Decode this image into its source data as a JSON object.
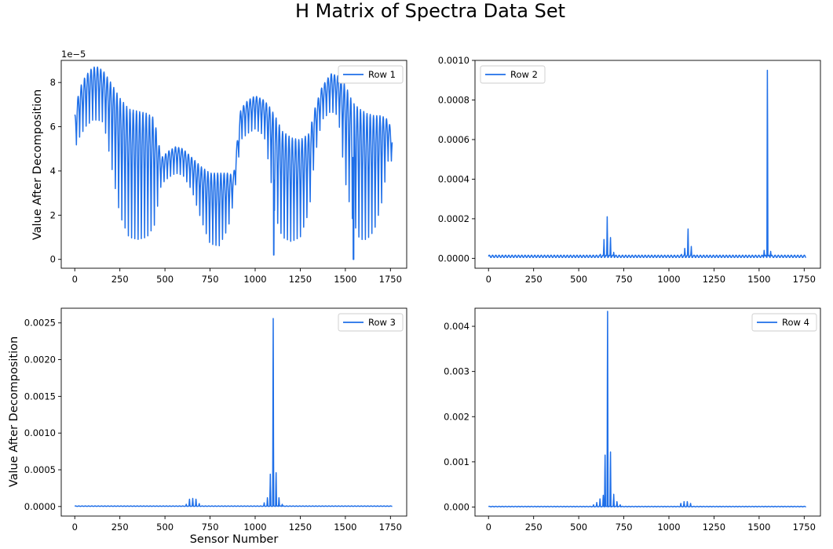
{
  "figure": {
    "title": "H Matrix of Spectra Data Set",
    "line_color": "#1f6fe8"
  },
  "chart_data": [
    {
      "type": "line",
      "series": [
        {
          "name": "Row 1"
        }
      ],
      "legend": "top-right",
      "ylabel": "Value After Decomposition",
      "xlabel": "",
      "y_offset_label": "1e−5",
      "xlim": [
        -75,
        1840
      ],
      "ylim": [
        -0.4,
        9.0
      ],
      "x_ticks": [
        0,
        250,
        500,
        750,
        1000,
        1250,
        1500,
        1750
      ],
      "x_tick_labels": [
        "0",
        "250",
        "500",
        "750",
        "1000",
        "1250",
        "1500",
        "1750"
      ],
      "y_ticks": [
        0,
        2,
        4,
        6,
        8
      ],
      "y_tick_labels": [
        "0",
        "2",
        "4",
        "6",
        "8"
      ],
      "envelope": {
        "x": [
          0,
          25,
          60,
          100,
          130,
          160,
          200,
          250,
          300,
          350,
          400,
          440,
          480,
          520,
          560,
          600,
          650,
          700,
          750,
          800,
          850,
          880,
          920,
          960,
          1000,
          1050,
          1080,
          1110,
          1150,
          1200,
          1250,
          1300,
          1330,
          1370,
          1420,
          1460,
          1500,
          1540,
          1580,
          1620,
          1660,
          1700,
          1740,
          1760
        ],
        "upper": [
          6.5,
          7.7,
          8.3,
          8.7,
          8.7,
          8.5,
          8.0,
          7.3,
          6.8,
          6.7,
          6.6,
          6.4,
          4.6,
          4.9,
          5.1,
          5.0,
          4.6,
          4.2,
          3.9,
          3.9,
          3.9,
          3.8,
          6.8,
          7.2,
          7.4,
          7.2,
          6.9,
          6.5,
          5.8,
          5.5,
          5.4,
          5.7,
          6.8,
          7.8,
          8.4,
          8.3,
          7.9,
          7.1,
          6.8,
          6.6,
          6.5,
          6.5,
          6.3,
          5.6
        ],
        "lower": [
          5.0,
          5.5,
          6.0,
          6.3,
          6.3,
          6.2,
          4.4,
          2.0,
          1.0,
          0.9,
          1.0,
          1.5,
          3.4,
          3.7,
          3.9,
          3.8,
          3.1,
          1.8,
          0.7,
          0.6,
          1.4,
          2.6,
          5.4,
          5.7,
          5.9,
          5.6,
          4.1,
          2.0,
          1.0,
          0.8,
          1.0,
          2.2,
          4.6,
          6.3,
          6.7,
          6.5,
          3.5,
          1.8,
          0.9,
          0.9,
          1.3,
          2.5,
          4.6,
          4.4
        ]
      },
      "oscillation_period": 18,
      "dips": [
        {
          "x": 1103,
          "y": 0.2
        },
        {
          "x": 1545,
          "y": 0.0
        }
      ]
    },
    {
      "type": "line",
      "series": [
        {
          "name": "Row 2"
        }
      ],
      "legend": "top-left",
      "ylabel": "",
      "xlabel": "",
      "xlim": [
        -75,
        1840
      ],
      "ylim": [
        -5e-05,
        0.001
      ],
      "x_ticks": [
        0,
        250,
        500,
        750,
        1000,
        1250,
        1500,
        1750
      ],
      "x_tick_labels": [
        "0",
        "250",
        "500",
        "750",
        "1000",
        "1250",
        "1500",
        "1750"
      ],
      "y_ticks": [
        0,
        0.0002,
        0.0004,
        0.0006,
        0.0008,
        0.001
      ],
      "y_tick_labels": [
        "0.0000",
        "0.0002",
        "0.0004",
        "0.0006",
        "0.0008",
        "0.0010"
      ],
      "baseline": 1e-05,
      "spikes": [
        {
          "x": 620,
          "y": 2e-05
        },
        {
          "x": 640,
          "y": 9.5e-05
        },
        {
          "x": 658,
          "y": 0.00021
        },
        {
          "x": 676,
          "y": 0.000105
        },
        {
          "x": 694,
          "y": 3e-05
        },
        {
          "x": 1070,
          "y": 2e-05
        },
        {
          "x": 1088,
          "y": 5e-05
        },
        {
          "x": 1106,
          "y": 0.000148
        },
        {
          "x": 1124,
          "y": 6e-05
        },
        {
          "x": 1142,
          "y": 1.5e-05
        },
        {
          "x": 1528,
          "y": 4e-05
        },
        {
          "x": 1546,
          "y": 0.00095
        },
        {
          "x": 1564,
          "y": 3.5e-05
        }
      ]
    },
    {
      "type": "line",
      "series": [
        {
          "name": "Row 3"
        }
      ],
      "legend": "top-right",
      "ylabel": "Value After Decomposition",
      "xlabel": "Sensor Number",
      "xlim": [
        -75,
        1840
      ],
      "ylim": [
        -0.00013,
        0.0027
      ],
      "x_ticks": [
        0,
        250,
        500,
        750,
        1000,
        1250,
        1500,
        1750
      ],
      "x_tick_labels": [
        "0",
        "250",
        "500",
        "750",
        "1000",
        "1250",
        "1500",
        "1750"
      ],
      "y_ticks": [
        0,
        0.0005,
        0.001,
        0.0015,
        0.002,
        0.0025
      ],
      "y_tick_labels": [
        "0.0000",
        "0.0005",
        "0.0010",
        "0.0015",
        "0.0020",
        "0.0025"
      ],
      "baseline": 5e-06,
      "spikes": [
        {
          "x": 618,
          "y": 3e-05
        },
        {
          "x": 636,
          "y": 0.0001
        },
        {
          "x": 654,
          "y": 0.00011
        },
        {
          "x": 672,
          "y": 0.0001
        },
        {
          "x": 690,
          "y": 4e-05
        },
        {
          "x": 1050,
          "y": 5e-05
        },
        {
          "x": 1068,
          "y": 0.00012
        },
        {
          "x": 1084,
          "y": 0.00044
        },
        {
          "x": 1100,
          "y": 0.00256
        },
        {
          "x": 1116,
          "y": 0.00046
        },
        {
          "x": 1132,
          "y": 0.00012
        },
        {
          "x": 1150,
          "y": 3e-05
        }
      ]
    },
    {
      "type": "line",
      "series": [
        {
          "name": "Row 4"
        }
      ],
      "legend": "top-right",
      "ylabel": "",
      "xlabel": "",
      "xlim": [
        -75,
        1840
      ],
      "ylim": [
        -0.0002,
        0.0044
      ],
      "x_ticks": [
        0,
        250,
        500,
        750,
        1000,
        1250,
        1500,
        1750
      ],
      "x_tick_labels": [
        "0",
        "250",
        "500",
        "750",
        "1000",
        "1250",
        "1500",
        "1750"
      ],
      "y_ticks": [
        0,
        0.001,
        0.002,
        0.003,
        0.004
      ],
      "y_tick_labels": [
        "0.000",
        "0.001",
        "0.002",
        "0.003",
        "0.004"
      ],
      "baseline": 1e-05,
      "spikes": [
        {
          "x": 582,
          "y": 5e-05
        },
        {
          "x": 600,
          "y": 0.0001
        },
        {
          "x": 618,
          "y": 0.00018
        },
        {
          "x": 636,
          "y": 0.00026
        },
        {
          "x": 646,
          "y": 0.00115
        },
        {
          "x": 660,
          "y": 0.00433
        },
        {
          "x": 676,
          "y": 0.00122
        },
        {
          "x": 694,
          "y": 0.00028
        },
        {
          "x": 712,
          "y": 0.00012
        },
        {
          "x": 730,
          "y": 5e-05
        },
        {
          "x": 1066,
          "y": 8e-05
        },
        {
          "x": 1084,
          "y": 0.00012
        },
        {
          "x": 1102,
          "y": 0.00012
        },
        {
          "x": 1120,
          "y": 8e-05
        }
      ]
    }
  ]
}
